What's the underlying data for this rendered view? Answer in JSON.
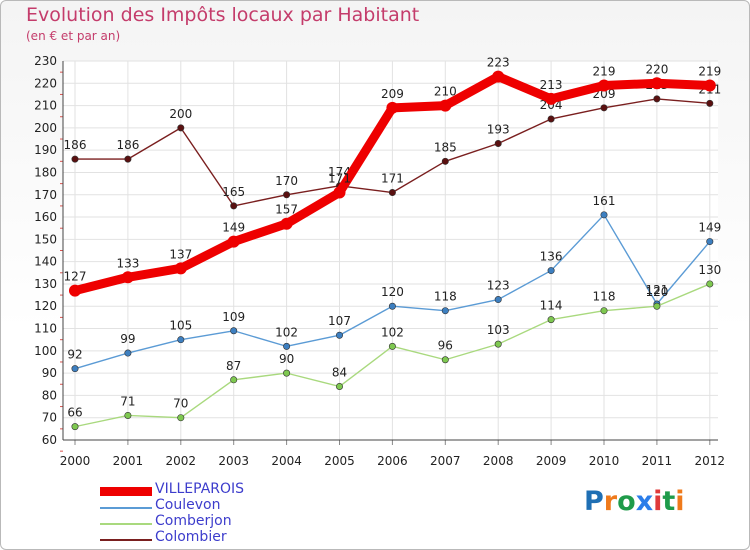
{
  "title": "Evolution des Impôts locaux par Habitant",
  "subtitle": "(en € et par an)",
  "brand": "Proxiti",
  "chart_data": {
    "type": "line",
    "title": "Evolution des Impôts locaux par Habitant",
    "subtitle": "(en € et par an)",
    "xlabel": "",
    "ylabel": "",
    "ylim": [
      60,
      230
    ],
    "yticks": [
      60,
      70,
      80,
      90,
      100,
      110,
      120,
      130,
      140,
      150,
      160,
      170,
      180,
      190,
      200,
      210,
      220,
      230
    ],
    "x": [
      "2000",
      "2001",
      "2002",
      "2003",
      "2004",
      "2005",
      "2006",
      "2007",
      "2008",
      "2009",
      "2010",
      "2011",
      "2012"
    ],
    "grid": true,
    "legend_position": "bottom-left",
    "series": [
      {
        "name": "Colombier",
        "color": "#7a1f1f",
        "marker": "#5a1010",
        "values": [
          186,
          186,
          200,
          165,
          170,
          174,
          171,
          185,
          193,
          204,
          209,
          213,
          211
        ]
      },
      {
        "name": "Coulevon",
        "color": "#5b9bd5",
        "marker": "#3d7fc0",
        "values": [
          92,
          99,
          105,
          109,
          102,
          107,
          120,
          118,
          123,
          136,
          161,
          121,
          149
        ]
      },
      {
        "name": "Comberjon",
        "color": "#a9d97e",
        "marker": "#7ec850",
        "values": [
          66,
          71,
          70,
          87,
          90,
          84,
          102,
          96,
          103,
          114,
          118,
          120,
          130
        ]
      },
      {
        "name": "VILLEPAROIS",
        "color": "#ee0000",
        "marker": "#ee0000",
        "values": [
          127,
          133,
          137,
          149,
          157,
          171,
          209,
          210,
          223,
          213,
          219,
          220,
          219
        ]
      }
    ],
    "legend_order": [
      "VILLEPAROIS",
      "Coulevon",
      "Comberjon",
      "Colombier"
    ]
  }
}
